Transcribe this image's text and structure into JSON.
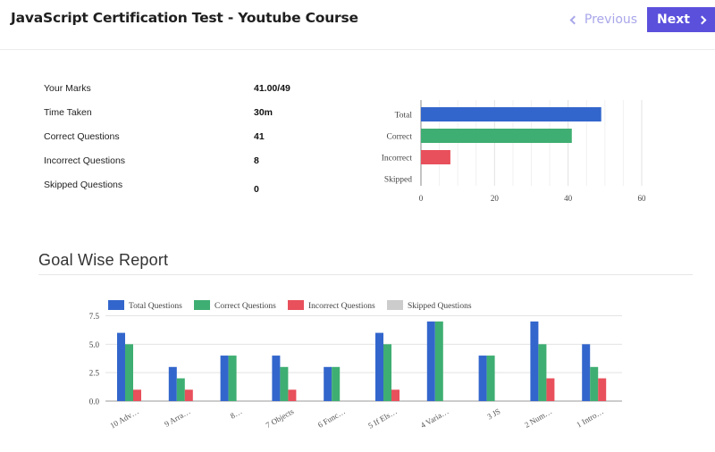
{
  "header": {
    "title": "JavaScript Certification Test - Youtube Course",
    "previous_label": "Previous",
    "next_label": "Next"
  },
  "stats": [
    {
      "label": "Your Marks",
      "value": "41.00/49"
    },
    {
      "label": "Time Taken",
      "value": "30m"
    },
    {
      "label": "Correct Questions",
      "value": "41"
    },
    {
      "label": "Incorrect Questions",
      "value": "8"
    },
    {
      "label": "Skipped Questions",
      "value": "0"
    }
  ],
  "section": {
    "title": "Goal Wise Report"
  },
  "colors": {
    "total": "#3366cc",
    "correct": "#3fae72",
    "incorrect": "#e8505b",
    "skipped": "#cccccc",
    "accent": "#5b50dc"
  },
  "chart_data": [
    {
      "type": "bar",
      "orientation": "horizontal",
      "categories": [
        "Total",
        "Correct",
        "Incorrect",
        "Skipped"
      ],
      "values": [
        49,
        41,
        8,
        0
      ],
      "xlim": [
        0,
        60
      ],
      "xticks": [
        "0",
        "20",
        "40",
        "60"
      ],
      "grid": true
    },
    {
      "type": "bar",
      "orientation": "vertical",
      "categories": [
        "10 Adv…",
        "9 Arra…",
        "8…",
        "7 Objects",
        "6 Func…",
        "5 If Els…",
        "4 Varia…",
        "3 JS",
        "2 Num…",
        "1 Intro…"
      ],
      "series": [
        {
          "name": "Total Questions",
          "values": [
            6,
            3,
            4,
            4,
            3,
            6,
            7,
            4,
            7,
            5
          ]
        },
        {
          "name": "Correct Questions",
          "values": [
            5,
            2,
            4,
            3,
            3,
            5,
            7,
            4,
            5,
            3
          ]
        },
        {
          "name": "Incorrect Questions",
          "values": [
            1,
            1,
            0,
            1,
            0,
            1,
            0,
            0,
            2,
            2
          ]
        },
        {
          "name": "Skipped Questions",
          "values": [
            0,
            0,
            0,
            0,
            0,
            0,
            0,
            0,
            0,
            0
          ]
        }
      ],
      "ylim": [
        0,
        7.5
      ],
      "yticks": [
        "0.0",
        "2.5",
        "5.0",
        "7.5"
      ],
      "legend": "top",
      "grid": true
    }
  ]
}
